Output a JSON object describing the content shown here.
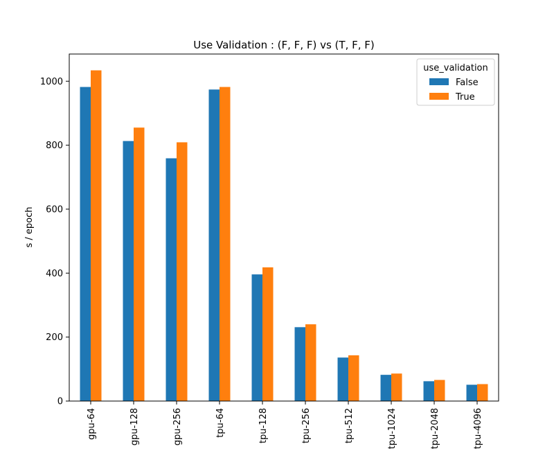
{
  "chart_data": {
    "type": "bar",
    "title": "Use Validation : (F, F, F) vs (T, F, F)",
    "xlabel": "",
    "ylabel": "s / epoch",
    "ylim": [
      0,
      1085
    ],
    "yticks": [
      0,
      200,
      400,
      600,
      800,
      1000
    ],
    "categories": [
      "gpu-64",
      "gpu-128",
      "gpu-256",
      "tpu-64",
      "tpu-128",
      "tpu-256",
      "tpu-512",
      "tpu-1024",
      "tpu-2048",
      "tpu-4096"
    ],
    "series": [
      {
        "name": "False",
        "color": "#1f77b4",
        "values": [
          982,
          813,
          759,
          974,
          396,
          231,
          136,
          82,
          62,
          51
        ]
      },
      {
        "name": "True",
        "color": "#ff7f0e",
        "values": [
          1034,
          855,
          809,
          982,
          418,
          240,
          143,
          86,
          66,
          53
        ]
      }
    ],
    "legend": {
      "title": "use_validation",
      "placement": "top-right"
    },
    "grid": false
  }
}
